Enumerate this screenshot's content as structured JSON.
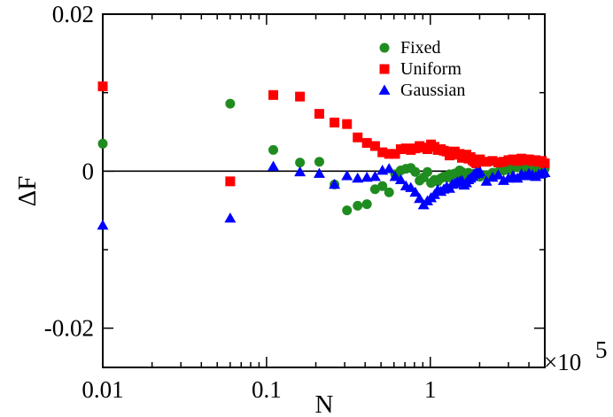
{
  "chart_data": {
    "type": "scatter",
    "title": "",
    "xlabel": "N",
    "ylabel": "ΔF",
    "x_scale": "log",
    "x_multiplier_label": "×10",
    "x_multiplier_exponent": "5",
    "xlim": [
      0.01,
      5
    ],
    "ylim": [
      -0.025,
      0.02
    ],
    "x_ticks": [
      {
        "value": 0.01,
        "label": "0.01"
      },
      {
        "value": 0.1,
        "label": "0.1"
      },
      {
        "value": 1,
        "label": "1"
      }
    ],
    "y_ticks": [
      {
        "value": 0.02,
        "label": "0.02"
      },
      {
        "value": 0,
        "label": "0"
      },
      {
        "value": -0.02,
        "label": "-0.02"
      }
    ],
    "y_minor_ticks": [
      0.01,
      -0.01
    ],
    "reference_line_y": 0,
    "grid": false,
    "legend_position": "top-right",
    "series": [
      {
        "name": "Fixed",
        "marker": "circle",
        "color": "#1f8c1f",
        "x": [
          0.01,
          0.06,
          0.11,
          0.16,
          0.21,
          0.26,
          0.31,
          0.36,
          0.41,
          0.46,
          0.51,
          0.56,
          0.61,
          0.66,
          0.71,
          0.76,
          0.81,
          0.86,
          0.91,
          0.96,
          1.01,
          1.06,
          1.11,
          1.16,
          1.21,
          1.26,
          1.31,
          1.36,
          1.41,
          1.46,
          1.51,
          1.56,
          1.61,
          1.66,
          1.71,
          1.76,
          1.81,
          1.86,
          1.91,
          1.96,
          2.01,
          2.2,
          2.4,
          2.6,
          2.8,
          3.0,
          3.2,
          3.4,
          3.6,
          3.8,
          4.0,
          4.2,
          4.4,
          4.6,
          4.8,
          5.0
        ],
        "y": [
          0.0035,
          0.0086,
          0.0027,
          0.0011,
          0.0012,
          -0.0017,
          -0.005,
          -0.0044,
          -0.0042,
          -0.0023,
          -0.0019,
          -0.0027,
          -0.0004,
          0.0001,
          0.0003,
          0.0004,
          -0.0001,
          -0.0012,
          -0.0008,
          -0.0001,
          -0.0015,
          -0.0011,
          -0.0013,
          -0.0009,
          -0.0007,
          -0.0008,
          -0.0004,
          -0.0009,
          -0.0003,
          -0.0006,
          0.0001,
          -0.0001,
          -0.0005,
          -0.0003,
          -0.0002,
          -0.0006,
          -0.0004,
          -0.0003,
          -0.0005,
          -0.0002,
          -0.0007,
          -0.0005,
          -0.0002,
          -0.0001,
          0.0001,
          0.0002,
          0.0004,
          0.0005,
          0.0004,
          0.0003,
          0.0005,
          0.0004,
          0.0003,
          0.0004,
          0.0002,
          0.0003
        ]
      },
      {
        "name": "Uniform",
        "marker": "square",
        "color": "#ff0000",
        "x": [
          0.01,
          0.06,
          0.11,
          0.16,
          0.21,
          0.26,
          0.31,
          0.36,
          0.41,
          0.46,
          0.51,
          0.56,
          0.61,
          0.66,
          0.71,
          0.76,
          0.81,
          0.86,
          0.91,
          0.96,
          1.01,
          1.06,
          1.11,
          1.16,
          1.21,
          1.26,
          1.31,
          1.36,
          1.41,
          1.46,
          1.51,
          1.56,
          1.61,
          1.66,
          1.71,
          1.76,
          1.81,
          1.86,
          1.91,
          1.96,
          2.01,
          2.2,
          2.4,
          2.6,
          2.8,
          3.0,
          3.2,
          3.4,
          3.6,
          3.8,
          4.0,
          4.2,
          4.4,
          4.6,
          4.8,
          5.0
        ],
        "y": [
          0.0108,
          -0.0013,
          0.0097,
          0.0095,
          0.0073,
          0.0062,
          0.006,
          0.0043,
          0.0036,
          0.0032,
          0.0024,
          0.0022,
          0.0022,
          0.0028,
          0.0029,
          0.0027,
          0.0029,
          0.0032,
          0.003,
          0.0028,
          0.0034,
          0.0031,
          0.0027,
          0.0028,
          0.0026,
          0.0025,
          0.002,
          0.0024,
          0.0025,
          0.0021,
          0.0022,
          0.0017,
          0.0019,
          0.0021,
          0.0016,
          0.0018,
          0.0014,
          0.0012,
          0.001,
          0.0013,
          0.0015,
          0.0012,
          0.0013,
          0.0011,
          0.0012,
          0.0014,
          0.0015,
          0.0013,
          0.0016,
          0.0014,
          0.0015,
          0.0013,
          0.0014,
          0.0012,
          0.0013,
          0.001
        ]
      },
      {
        "name": "Gaussian",
        "marker": "triangle",
        "color": "#0000ff",
        "x": [
          0.01,
          0.06,
          0.11,
          0.16,
          0.21,
          0.26,
          0.31,
          0.36,
          0.41,
          0.46,
          0.51,
          0.56,
          0.61,
          0.66,
          0.71,
          0.76,
          0.81,
          0.86,
          0.91,
          0.96,
          1.01,
          1.06,
          1.11,
          1.16,
          1.21,
          1.26,
          1.31,
          1.36,
          1.41,
          1.46,
          1.51,
          1.56,
          1.61,
          1.66,
          1.71,
          1.76,
          1.81,
          1.86,
          1.91,
          1.96,
          2.01,
          2.2,
          2.4,
          2.6,
          2.8,
          3.0,
          3.2,
          3.4,
          3.6,
          3.8,
          4.0,
          4.2,
          4.4,
          4.6,
          4.8,
          5.0
        ],
        "y": [
          -0.0069,
          -0.006,
          0.0006,
          -0.0001,
          -0.0003,
          -0.0017,
          -0.0006,
          -0.0009,
          -0.0008,
          -0.0007,
          0.0001,
          0.0003,
          -0.0007,
          -0.0011,
          -0.0019,
          -0.0021,
          -0.0027,
          -0.0035,
          -0.0043,
          -0.0038,
          -0.0034,
          -0.003,
          -0.0024,
          -0.0026,
          -0.0023,
          -0.002,
          -0.0022,
          -0.0017,
          -0.0016,
          -0.0014,
          -0.0013,
          -0.0012,
          -0.0018,
          -0.0015,
          -0.0011,
          -0.0009,
          -0.0007,
          -0.0004,
          -0.0002,
          -0.0003,
          -0.0001,
          -0.0013,
          -0.0008,
          -0.0005,
          -0.0012,
          -0.0009,
          -0.0006,
          -0.0009,
          -0.0004,
          -0.0006,
          -0.0003,
          -0.0005,
          -0.0007,
          -0.0004,
          -0.0003,
          -0.0002
        ]
      }
    ]
  }
}
